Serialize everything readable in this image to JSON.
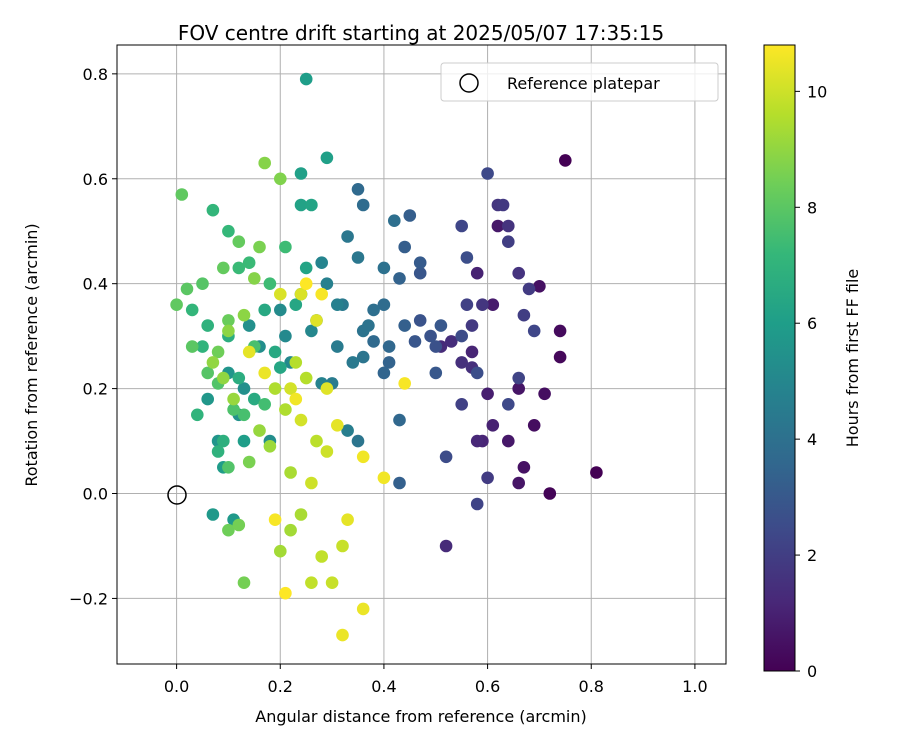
{
  "chart_data": {
    "type": "scatter",
    "title": "FOV centre drift starting at 2025/05/07 17:35:15",
    "xlabel": "Angular distance from reference (arcmin)",
    "ylabel": "Rotation from reference (arcmin)",
    "xlim": [
      -0.115,
      1.06
    ],
    "ylim": [
      -0.325,
      0.855
    ],
    "xticks": [
      0.0,
      0.2,
      0.4,
      0.6,
      0.8,
      1.0
    ],
    "xtick_labels": [
      "0.0",
      "0.2",
      "0.4",
      "0.6",
      "0.8",
      "1.0"
    ],
    "yticks": [
      -0.2,
      0.0,
      0.2,
      0.4,
      0.6,
      0.8
    ],
    "ytick_labels": [
      "−0.2",
      "0.0",
      "0.2",
      "0.4",
      "0.6",
      "0.8"
    ],
    "grid": true,
    "legend": {
      "position": "top-right",
      "label": "Reference platepar"
    },
    "reference_point": {
      "x": 0.0,
      "y": 0.0
    },
    "colorbar": {
      "label": "Hours from first FF file",
      "colormap": "viridis",
      "range": [
        0,
        10.8
      ],
      "ticks": [
        0,
        2,
        4,
        6,
        8,
        10
      ],
      "tick_labels": [
        "0",
        "2",
        "4",
        "6",
        "8",
        "10"
      ]
    },
    "series": [
      {
        "points": [
          [
            0.75,
            0.635,
            0.0
          ],
          [
            0.81,
            0.04,
            0.0
          ],
          [
            0.72,
            0.0,
            0.1
          ],
          [
            0.74,
            0.26,
            0.2
          ],
          [
            0.74,
            0.31,
            0.3
          ],
          [
            0.71,
            0.19,
            0.4
          ],
          [
            0.69,
            0.13,
            0.4
          ],
          [
            0.7,
            0.395,
            0.5
          ],
          [
            0.67,
            0.05,
            0.5
          ],
          [
            0.66,
            0.02,
            0.6
          ],
          [
            0.66,
            0.2,
            0.6
          ],
          [
            0.64,
            0.1,
            0.7
          ],
          [
            0.62,
            0.51,
            0.7
          ],
          [
            0.61,
            0.36,
            0.8
          ],
          [
            0.6,
            0.19,
            0.9
          ],
          [
            0.58,
            0.42,
            1.0
          ],
          [
            0.61,
            0.13,
            1.0
          ],
          [
            0.59,
            0.1,
            1.1
          ],
          [
            0.57,
            0.27,
            1.1
          ],
          [
            0.58,
            0.1,
            1.2
          ],
          [
            0.52,
            -0.1,
            1.3
          ],
          [
            0.51,
            0.28,
            1.3
          ],
          [
            0.53,
            0.29,
            1.4
          ],
          [
            0.57,
            0.24,
            1.5
          ],
          [
            0.55,
            0.25,
            1.5
          ],
          [
            0.64,
            0.51,
            1.6
          ],
          [
            0.66,
            0.42,
            1.6
          ],
          [
            0.62,
            0.55,
            1.7
          ],
          [
            0.59,
            0.36,
            1.7
          ],
          [
            0.57,
            0.32,
            1.8
          ],
          [
            0.63,
            0.55,
            1.8
          ],
          [
            0.6,
            0.03,
            1.9
          ],
          [
            0.68,
            0.39,
            1.9
          ],
          [
            0.67,
            0.34,
            2.0
          ],
          [
            0.64,
            0.48,
            2.0
          ],
          [
            0.56,
            0.36,
            2.1
          ],
          [
            0.55,
            0.17,
            2.1
          ],
          [
            0.58,
            -0.02,
            2.2
          ],
          [
            0.66,
            0.22,
            2.2
          ],
          [
            0.69,
            0.31,
            2.3
          ],
          [
            0.55,
            0.51,
            2.3
          ],
          [
            0.6,
            0.61,
            2.4
          ],
          [
            0.64,
            0.17,
            2.4
          ],
          [
            0.55,
            0.3,
            2.5
          ],
          [
            0.52,
            0.07,
            2.5
          ],
          [
            0.58,
            0.23,
            2.6
          ],
          [
            0.56,
            0.45,
            2.6
          ],
          [
            0.5,
            0.28,
            2.7
          ],
          [
            0.49,
            0.3,
            2.8
          ],
          [
            0.47,
            0.33,
            2.8
          ],
          [
            0.47,
            0.42,
            2.9
          ],
          [
            0.46,
            0.29,
            2.9
          ],
          [
            0.51,
            0.32,
            3.0
          ],
          [
            0.5,
            0.23,
            3.0
          ],
          [
            0.47,
            0.44,
            3.1
          ],
          [
            0.45,
            0.53,
            3.2
          ],
          [
            0.44,
            0.47,
            3.2
          ],
          [
            0.44,
            0.32,
            3.3
          ],
          [
            0.43,
            0.02,
            3.3
          ],
          [
            0.43,
            0.41,
            3.4
          ],
          [
            0.41,
            0.25,
            3.4
          ],
          [
            0.4,
            0.23,
            3.5
          ],
          [
            0.41,
            0.28,
            3.6
          ],
          [
            0.43,
            0.14,
            3.6
          ],
          [
            0.38,
            0.29,
            3.7
          ],
          [
            0.35,
            0.58,
            3.7
          ],
          [
            0.36,
            0.55,
            3.8
          ],
          [
            0.4,
            0.36,
            3.8
          ],
          [
            0.38,
            0.35,
            3.9
          ],
          [
            0.42,
            0.52,
            3.9
          ],
          [
            0.4,
            0.43,
            4.0
          ],
          [
            0.37,
            0.32,
            4.1
          ],
          [
            0.36,
            0.31,
            4.1
          ],
          [
            0.36,
            0.26,
            4.2
          ],
          [
            0.35,
            0.1,
            4.2
          ],
          [
            0.35,
            0.45,
            4.3
          ],
          [
            0.33,
            0.49,
            4.3
          ],
          [
            0.34,
            0.25,
            4.4
          ],
          [
            0.32,
            0.36,
            4.4
          ],
          [
            0.31,
            0.28,
            4.5
          ],
          [
            0.3,
            0.21,
            4.5
          ],
          [
            0.33,
            0.12,
            4.6
          ],
          [
            0.31,
            0.36,
            4.7
          ],
          [
            0.29,
            0.4,
            4.7
          ],
          [
            0.28,
            0.21,
            4.8
          ],
          [
            0.28,
            0.44,
            4.9
          ],
          [
            0.27,
            0.33,
            4.9
          ],
          [
            0.26,
            0.31,
            5.0
          ],
          [
            0.24,
            0.38,
            5.0
          ],
          [
            0.22,
            0.25,
            5.1
          ],
          [
            0.21,
            0.3,
            5.1
          ],
          [
            0.2,
            0.35,
            5.2
          ],
          [
            0.18,
            0.1,
            5.3
          ],
          [
            0.16,
            0.28,
            5.3
          ],
          [
            0.14,
            0.32,
            5.4
          ],
          [
            0.13,
            0.2,
            5.4
          ],
          [
            0.12,
            0.15,
            5.5
          ],
          [
            0.1,
            0.23,
            5.6
          ],
          [
            0.08,
            0.1,
            5.6
          ],
          [
            0.06,
            0.18,
            5.7
          ],
          [
            0.07,
            -0.04,
            5.8
          ],
          [
            0.11,
            -0.05,
            5.8
          ],
          [
            0.09,
            0.05,
            5.9
          ],
          [
            0.13,
            0.1,
            6.0
          ],
          [
            0.25,
            0.79,
            6.0
          ],
          [
            0.29,
            0.64,
            6.1
          ],
          [
            0.24,
            0.61,
            6.1
          ],
          [
            0.24,
            0.55,
            6.2
          ],
          [
            0.26,
            0.55,
            6.3
          ],
          [
            0.25,
            0.43,
            6.3
          ],
          [
            0.23,
            0.36,
            6.4
          ],
          [
            0.2,
            0.24,
            6.4
          ],
          [
            0.19,
            0.27,
            6.5
          ],
          [
            0.17,
            0.35,
            6.5
          ],
          [
            0.15,
            0.18,
            6.6
          ],
          [
            0.12,
            0.22,
            6.7
          ],
          [
            0.1,
            0.3,
            6.7
          ],
          [
            0.09,
            0.1,
            6.8
          ],
          [
            0.08,
            0.08,
            6.9
          ],
          [
            0.06,
            0.32,
            6.9
          ],
          [
            0.04,
            0.15,
            7.0
          ],
          [
            0.05,
            0.28,
            7.0
          ],
          [
            0.03,
            0.35,
            7.1
          ],
          [
            0.07,
            0.54,
            7.1
          ],
          [
            0.1,
            0.5,
            7.2
          ],
          [
            0.12,
            0.43,
            7.3
          ],
          [
            0.14,
            0.44,
            7.3
          ],
          [
            0.18,
            0.4,
            7.4
          ],
          [
            0.21,
            0.47,
            7.4
          ],
          [
            0.17,
            0.17,
            7.5
          ],
          [
            0.15,
            0.28,
            7.6
          ],
          [
            0.13,
            0.15,
            7.6
          ],
          [
            0.11,
            0.16,
            7.7
          ],
          [
            0.1,
            0.05,
            7.8
          ],
          [
            0.08,
            0.21,
            7.8
          ],
          [
            0.06,
            0.23,
            7.9
          ],
          [
            0.05,
            0.4,
            7.9
          ],
          [
            0.03,
            0.28,
            8.0
          ],
          [
            0.02,
            0.39,
            8.0
          ],
          [
            0.01,
            0.57,
            8.1
          ],
          [
            0.0,
            0.36,
            8.1
          ],
          [
            0.09,
            0.43,
            8.2
          ],
          [
            0.12,
            0.48,
            8.2
          ],
          [
            0.1,
            0.33,
            8.3
          ],
          [
            0.08,
            0.27,
            8.4
          ],
          [
            0.1,
            -0.07,
            8.4
          ],
          [
            0.12,
            -0.06,
            8.5
          ],
          [
            0.13,
            -0.17,
            8.5
          ],
          [
            0.14,
            0.06,
            8.6
          ],
          [
            0.16,
            0.47,
            8.6
          ],
          [
            0.2,
            0.6,
            8.7
          ],
          [
            0.17,
            0.63,
            8.8
          ],
          [
            0.15,
            0.41,
            8.8
          ],
          [
            0.13,
            0.34,
            8.9
          ],
          [
            0.1,
            0.31,
            8.9
          ],
          [
            0.07,
            0.25,
            9.0
          ],
          [
            0.09,
            0.22,
            9.0
          ],
          [
            0.11,
            0.18,
            9.1
          ],
          [
            0.16,
            0.12,
            9.1
          ],
          [
            0.18,
            0.09,
            9.2
          ],
          [
            0.2,
            -0.11,
            9.3
          ],
          [
            0.22,
            -0.07,
            9.3
          ],
          [
            0.24,
            -0.04,
            9.4
          ],
          [
            0.22,
            0.04,
            9.4
          ],
          [
            0.19,
            0.2,
            9.5
          ],
          [
            0.21,
            0.16,
            9.5
          ],
          [
            0.23,
            0.25,
            9.6
          ],
          [
            0.25,
            0.22,
            9.6
          ],
          [
            0.27,
            0.1,
            9.7
          ],
          [
            0.26,
            -0.17,
            9.8
          ],
          [
            0.28,
            -0.12,
            9.8
          ],
          [
            0.3,
            -0.17,
            9.9
          ],
          [
            0.32,
            -0.1,
            9.9
          ],
          [
            0.29,
            0.08,
            10.0
          ],
          [
            0.26,
            0.02,
            10.0
          ],
          [
            0.24,
            0.14,
            10.1
          ],
          [
            0.22,
            0.2,
            10.1
          ],
          [
            0.2,
            0.38,
            10.2
          ],
          [
            0.24,
            0.38,
            10.2
          ],
          [
            0.27,
            0.33,
            10.3
          ],
          [
            0.29,
            0.2,
            10.3
          ],
          [
            0.31,
            0.13,
            10.4
          ],
          [
            0.33,
            -0.05,
            10.4
          ],
          [
            0.32,
            -0.27,
            10.5
          ],
          [
            0.36,
            -0.22,
            10.5
          ],
          [
            0.36,
            0.07,
            10.6
          ],
          [
            0.4,
            0.03,
            10.6
          ],
          [
            0.44,
            0.21,
            10.7
          ],
          [
            0.28,
            0.38,
            10.7
          ],
          [
            0.25,
            0.4,
            10.8
          ],
          [
            0.21,
            -0.19,
            10.8
          ],
          [
            0.19,
            -0.05,
            10.7
          ],
          [
            0.23,
            0.18,
            10.6
          ],
          [
            0.17,
            0.23,
            10.5
          ],
          [
            0.14,
            0.27,
            10.4
          ]
        ]
      }
    ]
  }
}
